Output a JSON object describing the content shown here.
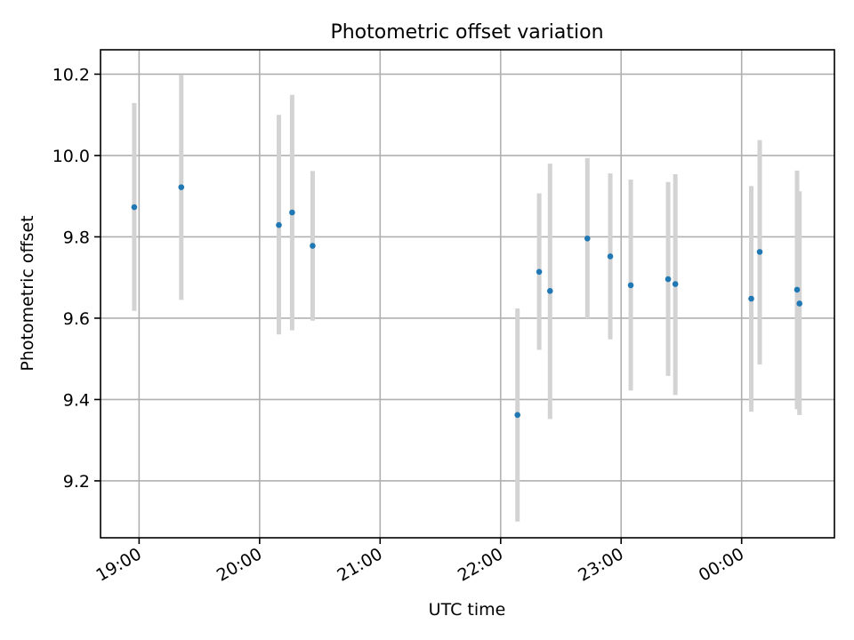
{
  "chart_data": {
    "type": "scatter",
    "title": "Photometric offset variation",
    "xlabel": "UTC time",
    "ylabel": "Photometric offset",
    "x_unit": "hours",
    "xlim": [
      18.68,
      24.77
    ],
    "ylim": [
      9.06,
      10.26
    ],
    "x_ticks": [
      {
        "value": 19,
        "label": "19:00"
      },
      {
        "value": 20,
        "label": "20:00"
      },
      {
        "value": 21,
        "label": "21:00"
      },
      {
        "value": 22,
        "label": "22:00"
      },
      {
        "value": 23,
        "label": "23:00"
      },
      {
        "value": 24,
        "label": "00:00"
      }
    ],
    "y_ticks": [
      {
        "value": 9.2,
        "label": "9.2"
      },
      {
        "value": 9.4,
        "label": "9.4"
      },
      {
        "value": 9.6,
        "label": "9.6"
      },
      {
        "value": 9.8,
        "label": "9.8"
      },
      {
        "value": 10.0,
        "label": "10.0"
      },
      {
        "value": 10.2,
        "label": "10.2"
      }
    ],
    "grid": true,
    "marker_color": "#1f77b4",
    "errorbar_color": "#d3d3d3",
    "points": [
      {
        "x": 18.96,
        "y": 9.873,
        "low": 9.618,
        "high": 10.129
      },
      {
        "x": 19.35,
        "y": 9.922,
        "low": 9.645,
        "high": 10.199
      },
      {
        "x": 20.16,
        "y": 9.829,
        "low": 9.56,
        "high": 10.1
      },
      {
        "x": 20.27,
        "y": 9.86,
        "low": 9.57,
        "high": 10.149
      },
      {
        "x": 20.44,
        "y": 9.778,
        "low": 9.594,
        "high": 9.962
      },
      {
        "x": 22.14,
        "y": 9.362,
        "low": 9.1,
        "high": 9.624
      },
      {
        "x": 22.32,
        "y": 9.714,
        "low": 9.522,
        "high": 9.907
      },
      {
        "x": 22.41,
        "y": 9.667,
        "low": 9.352,
        "high": 9.98
      },
      {
        "x": 22.72,
        "y": 9.796,
        "low": 9.6,
        "high": 9.994
      },
      {
        "x": 22.91,
        "y": 9.752,
        "low": 9.548,
        "high": 9.956
      },
      {
        "x": 23.08,
        "y": 9.681,
        "low": 9.422,
        "high": 9.941
      },
      {
        "x": 23.39,
        "y": 9.696,
        "low": 9.458,
        "high": 9.935
      },
      {
        "x": 23.45,
        "y": 9.684,
        "low": 9.411,
        "high": 9.954
      },
      {
        "x": 24.08,
        "y": 9.648,
        "low": 9.37,
        "high": 9.925
      },
      {
        "x": 24.15,
        "y": 9.763,
        "low": 9.486,
        "high": 10.038
      },
      {
        "x": 24.46,
        "y": 9.67,
        "low": 9.376,
        "high": 9.963
      },
      {
        "x": 24.48,
        "y": 9.636,
        "low": 9.362,
        "high": 9.912
      }
    ]
  }
}
